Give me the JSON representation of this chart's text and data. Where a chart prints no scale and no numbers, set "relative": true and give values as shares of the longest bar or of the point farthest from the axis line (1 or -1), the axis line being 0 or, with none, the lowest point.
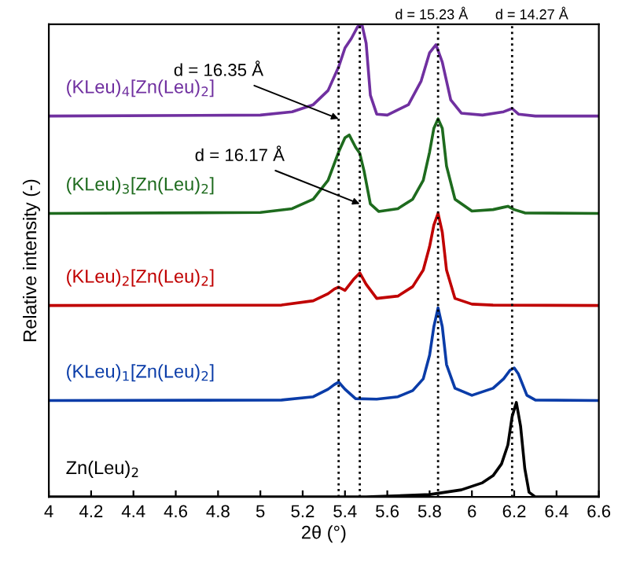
{
  "chart_data": {
    "type": "line",
    "relative": true,
    "xlabel": "2θ (°)",
    "ylabel": "Relative intensity (-)",
    "xlim": [
      4,
      6.6
    ],
    "xticks": [
      4,
      4.2,
      4.4,
      4.6,
      4.8,
      5,
      5.2,
      5.4,
      5.6,
      5.8,
      6,
      6.2,
      6.4,
      6.6
    ],
    "grid": false,
    "legend": false,
    "marker": "none",
    "line_style": "solid",
    "series": [
      {
        "name": "Zn(Leu)$_{2}$",
        "color": "#000000",
        "x": [
          4,
          5.5,
          5.8,
          5.95,
          6.05,
          6.1,
          6.14,
          6.17,
          6.19,
          6.21,
          6.23,
          6.25,
          6.27,
          6.3,
          6.6
        ],
        "values": [
          0,
          0,
          0.005,
          0.015,
          0.03,
          0.045,
          0.07,
          0.11,
          0.17,
          0.2,
          0.15,
          0.06,
          0.01,
          0,
          0
        ]
      },
      {
        "name": "(KLeu)$_{1}$[Zn(Leu)$_{2}$]",
        "color": "#0a3ca8",
        "x": [
          4,
          5.1,
          5.25,
          5.32,
          5.35,
          5.37,
          5.4,
          5.45,
          5.55,
          5.65,
          5.72,
          5.77,
          5.8,
          5.82,
          5.84,
          5.86,
          5.88,
          5.92,
          6.0,
          6.1,
          6.15,
          6.18,
          6.2,
          6.22,
          6.26,
          6.3,
          6.6
        ],
        "values": [
          0.204,
          0.205,
          0.212,
          0.228,
          0.238,
          0.243,
          0.228,
          0.208,
          0.207,
          0.212,
          0.225,
          0.25,
          0.3,
          0.36,
          0.4,
          0.36,
          0.28,
          0.23,
          0.215,
          0.23,
          0.25,
          0.268,
          0.273,
          0.26,
          0.215,
          0.205,
          0.204
        ]
      },
      {
        "name": "(KLeu)$_{2}$[Zn(Leu)$_{2}$]",
        "color": "#c00000",
        "x": [
          4,
          5.1,
          5.25,
          5.32,
          5.35,
          5.37,
          5.4,
          5.44,
          5.47,
          5.5,
          5.55,
          5.65,
          5.72,
          5.77,
          5.8,
          5.82,
          5.84,
          5.86,
          5.88,
          5.92,
          6.0,
          6.1,
          6.6
        ],
        "values": [
          0.405,
          0.406,
          0.415,
          0.43,
          0.44,
          0.444,
          0.437,
          0.46,
          0.474,
          0.45,
          0.42,
          0.425,
          0.445,
          0.48,
          0.53,
          0.575,
          0.6,
          0.56,
          0.48,
          0.42,
          0.408,
          0.406,
          0.405
        ]
      },
      {
        "name": "(KLeu)$_{3}$[Zn(Leu)$_{2}$]",
        "color": "#1e6b1e",
        "x": [
          4,
          5.0,
          5.15,
          5.25,
          5.32,
          5.37,
          5.4,
          5.42,
          5.45,
          5.47,
          5.49,
          5.52,
          5.56,
          5.65,
          5.72,
          5.77,
          5.8,
          5.82,
          5.84,
          5.86,
          5.88,
          5.92,
          6.0,
          6.1,
          6.15,
          6.17,
          6.2,
          6.25,
          6.6
        ],
        "values": [
          0.6,
          0.602,
          0.61,
          0.63,
          0.67,
          0.73,
          0.76,
          0.766,
          0.74,
          0.727,
          0.69,
          0.62,
          0.604,
          0.61,
          0.63,
          0.67,
          0.73,
          0.78,
          0.8,
          0.78,
          0.7,
          0.63,
          0.605,
          0.608,
          0.613,
          0.615,
          0.608,
          0.601,
          0.6
        ]
      },
      {
        "name": "(KLeu)$_{4}$[Zn(Leu)$_{2}$]",
        "color": "#7030a0",
        "x": [
          4,
          5.0,
          5.15,
          5.25,
          5.32,
          5.37,
          5.4,
          5.43,
          5.46,
          5.48,
          5.5,
          5.52,
          5.55,
          5.6,
          5.7,
          5.76,
          5.8,
          5.83,
          5.86,
          5.9,
          5.95,
          6.05,
          6.15,
          6.19,
          6.22,
          6.3,
          6.6
        ],
        "values": [
          0.806,
          0.808,
          0.815,
          0.83,
          0.86,
          0.91,
          0.95,
          0.97,
          0.995,
          1.0,
          0.96,
          0.85,
          0.81,
          0.808,
          0.83,
          0.88,
          0.94,
          0.957,
          0.92,
          0.84,
          0.812,
          0.808,
          0.815,
          0.822,
          0.81,
          0.806,
          0.806
        ]
      }
    ],
    "ref_lines": [
      {
        "axis": "x",
        "value": 5.37,
        "label": null,
        "color": "#000000",
        "line_style": "dotted"
      },
      {
        "axis": "x",
        "value": 5.47,
        "label": null,
        "color": "#000000",
        "line_style": "dotted"
      },
      {
        "axis": "x",
        "value": 5.84,
        "label": null,
        "color": "#000000",
        "line_style": "dotted"
      },
      {
        "axis": "x",
        "value": 6.19,
        "label": null,
        "color": "#000000",
        "line_style": "dotted"
      }
    ],
    "annotations": [
      {
        "text": "d = 16.35 Å",
        "x": 5.37,
        "y": 0.8
      },
      {
        "text": "d = 16.17 Å",
        "x": 5.47,
        "y": 0.62
      },
      {
        "text": "d = 15.23 Å",
        "x": 5.84,
        "y": 1.0
      },
      {
        "text": "d = 14.27 Å",
        "x": 6.19,
        "y": 1.0
      }
    ]
  }
}
